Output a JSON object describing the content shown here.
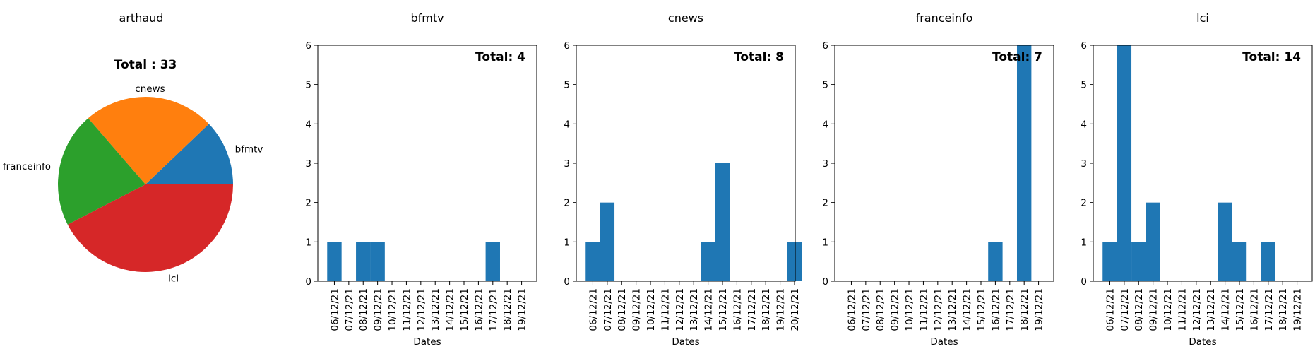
{
  "chart_data": [
    {
      "type": "pie",
      "title": "arthaud",
      "subtitle": "Total : 33",
      "labels": [
        "bfmtv",
        "cnews",
        "franceinfo",
        "lci"
      ],
      "values": [
        4,
        8,
        7,
        14
      ],
      "colors": [
        "#1f77b4",
        "#ff7f0e",
        "#2ca02c",
        "#d62728"
      ]
    },
    {
      "type": "bar",
      "title": "bfmtv",
      "annotation": "Total: 4",
      "xlabel": "Dates",
      "ylim": [
        0,
        6
      ],
      "yticks": [
        0,
        1,
        2,
        3,
        4,
        5,
        6
      ],
      "categories": [
        "06/12/21",
        "07/12/21",
        "08/12/21",
        "09/12/21",
        "10/12/21",
        "11/12/21",
        "12/12/21",
        "13/12/21",
        "14/12/21",
        "15/12/21",
        "16/12/21",
        "17/12/21",
        "18/12/21",
        "19/12/21"
      ],
      "values": [
        1,
        0,
        1,
        1,
        0,
        0,
        0,
        0,
        0,
        0,
        0,
        1,
        0,
        0
      ],
      "color": "#1f77b4"
    },
    {
      "type": "bar",
      "title": "cnews",
      "annotation": "Total: 8",
      "xlabel": "Dates",
      "ylim": [
        0,
        6
      ],
      "yticks": [
        0,
        1,
        2,
        3,
        4,
        5,
        6
      ],
      "categories": [
        "06/12/21",
        "07/12/21",
        "08/12/21",
        "09/12/21",
        "10/12/21",
        "11/12/21",
        "12/12/21",
        "13/12/21",
        "14/12/21",
        "15/12/21",
        "16/12/21",
        "17/12/21",
        "18/12/21",
        "19/12/21",
        "20/12/21"
      ],
      "values": [
        1,
        2,
        0,
        0,
        0,
        0,
        0,
        0,
        1,
        3,
        0,
        0,
        0,
        0,
        1
      ],
      "color": "#1f77b4"
    },
    {
      "type": "bar",
      "title": "franceinfo",
      "annotation": "Total: 7",
      "xlabel": "Dates",
      "ylim": [
        0,
        6
      ],
      "yticks": [
        0,
        1,
        2,
        3,
        4,
        5,
        6
      ],
      "categories": [
        "06/12/21",
        "07/12/21",
        "08/12/21",
        "09/12/21",
        "10/12/21",
        "11/12/21",
        "12/12/21",
        "13/12/21",
        "14/12/21",
        "15/12/21",
        "16/12/21",
        "17/12/21",
        "18/12/21",
        "19/12/21"
      ],
      "values": [
        0,
        0,
        0,
        0,
        0,
        0,
        0,
        0,
        0,
        0,
        1,
        0,
        6,
        0
      ],
      "color": "#1f77b4"
    },
    {
      "type": "bar",
      "title": "lci",
      "annotation": "Total: 14",
      "xlabel": "Dates",
      "ylim": [
        0,
        6
      ],
      "yticks": [
        0,
        1,
        2,
        3,
        4,
        5,
        6
      ],
      "categories": [
        "06/12/21",
        "07/12/21",
        "08/12/21",
        "09/12/21",
        "10/12/21",
        "11/12/21",
        "12/12/21",
        "13/12/21",
        "14/12/21",
        "15/12/21",
        "16/12/21",
        "17/12/21",
        "18/12/21",
        "19/12/21"
      ],
      "values": [
        1,
        6,
        1,
        2,
        0,
        0,
        0,
        0,
        2,
        1,
        0,
        1,
        0,
        0
      ],
      "color": "#1f77b4"
    }
  ]
}
